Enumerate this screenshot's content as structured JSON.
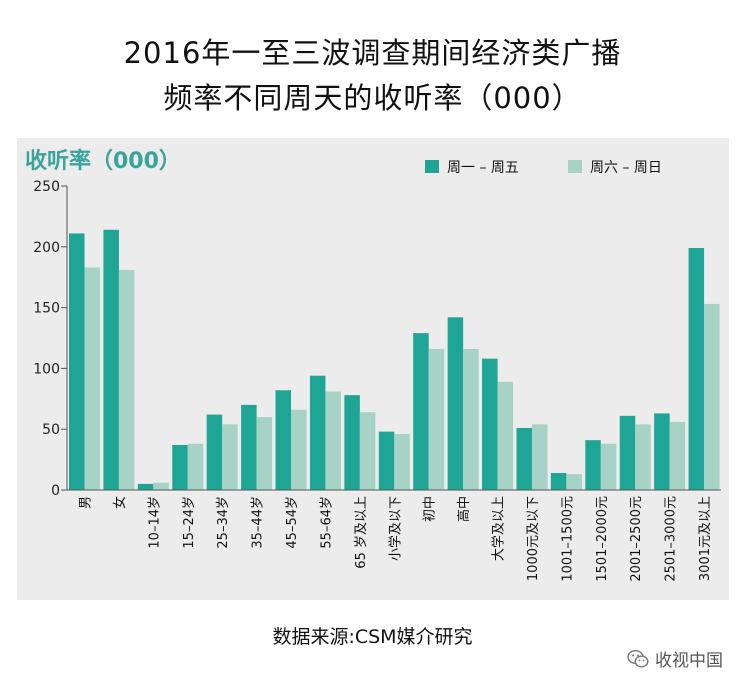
{
  "title_lines": [
    "2016年一至三波调查期间经济类广播",
    "频率不同周天的收听率（000）"
  ],
  "source": "数据来源:CSM媒介研究",
  "watermark": "收视中国",
  "chart_data": {
    "type": "bar",
    "ylabel": "收听率（000）",
    "ylim": [
      0,
      250
    ],
    "yticks": [
      0,
      50,
      100,
      150,
      200,
      250
    ],
    "grid": false,
    "legend_position": "top-right",
    "categories": [
      "男",
      "女",
      "10–14岁",
      "15–24岁",
      "25–34岁",
      "35–44岁",
      "45–54岁",
      "55–64岁",
      "65 岁及以上",
      "小学及以下",
      "初中",
      "高中",
      "大学及以上",
      "1000元及以下",
      "1001–1500元",
      "1501–2000元",
      "2001–2500元",
      "2501–3000元",
      "3001元及以上"
    ],
    "series": [
      {
        "name": "周一 – 周五",
        "color": "#1fa596",
        "values": [
          211,
          214,
          5,
          37,
          62,
          70,
          82,
          94,
          78,
          48,
          129,
          142,
          108,
          51,
          14,
          41,
          61,
          63,
          199
        ]
      },
      {
        "name": "周六 – 周日",
        "color": "#a6d3c6",
        "values": [
          183,
          181,
          6,
          38,
          54,
          60,
          66,
          81,
          64,
          46,
          116,
          116,
          89,
          54,
          13,
          38,
          54,
          56,
          153
        ]
      }
    ]
  }
}
